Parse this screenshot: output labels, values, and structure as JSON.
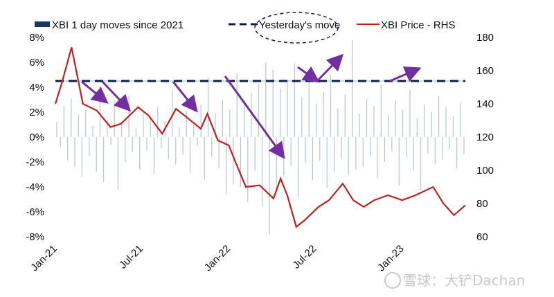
{
  "chart_data": {
    "type": "bar+line",
    "legend": [
      {
        "label": "XBI 1 day moves since 2021",
        "kind": "bar",
        "color": "#17375e"
      },
      {
        "label": "Yesterday's move",
        "kind": "dashed-line",
        "color": "#0d1b4d"
      },
      {
        "label": "XBI Price - RHS",
        "kind": "line",
        "color": "#c0201c"
      }
    ],
    "legend_placement": "top",
    "y_left": {
      "ticks": [
        "8%",
        "6%",
        "4%",
        "2%",
        "0%",
        "-2%",
        "-4%",
        "-6%",
        "-8%"
      ],
      "range": [
        -8,
        8
      ],
      "unit": "%"
    },
    "y_right": {
      "ticks": [
        "180",
        "160",
        "140",
        "120",
        "100",
        "80",
        "60"
      ],
      "range": [
        60,
        180
      ]
    },
    "x_ticks": [
      {
        "label": "Jan-21",
        "date": "2021-01-01"
      },
      {
        "label": "Jul-21",
        "date": "2021-07-01"
      },
      {
        "label": "Jan-22",
        "date": "2022-01-01"
      },
      {
        "label": "Jul-22",
        "date": "2022-07-01"
      },
      {
        "label": "Jan-23",
        "date": "2023-01-01"
      }
    ],
    "x_range": [
      "2021-01-01",
      "2023-05-14"
    ],
    "yesterday_move": 4.5,
    "daily_moves_color": "#b9c9d9",
    "daily_moves": [
      1.2,
      -0.8,
      2.5,
      -1.9,
      3.1,
      -2.4,
      1.8,
      -3.2,
      2.2,
      -1.5,
      0.9,
      -2.8,
      4.1,
      -3.6,
      1.4,
      -0.6,
      2.9,
      -4.2,
      1.1,
      -2.0,
      3.3,
      -1.2,
      0.7,
      -2.6,
      2.0,
      -1.1,
      1.6,
      -3.0,
      2.4,
      -0.9,
      1.3,
      -1.8,
      3.7,
      -2.2,
      0.8,
      -1.4,
      2.1,
      -2.9,
      1.0,
      -0.7,
      2.6,
      -3.4,
      4.8,
      -1.6,
      1.9,
      -2.5,
      3.0,
      -4.6,
      2.2,
      -3.8,
      5.1,
      -4.0,
      2.8,
      -5.2,
      3.5,
      -2.7,
      4.3,
      -5.6,
      6.0,
      -7.8,
      5.4,
      -4.4,
      3.9,
      -3.1,
      4.6,
      -2.3,
      5.9,
      -4.8,
      3.2,
      -2.1,
      4.4,
      -3.5,
      2.7,
      -1.9,
      3.6,
      -4.1,
      5.0,
      -2.8,
      2.3,
      -1.7,
      3.4,
      -3.0,
      7.8,
      -2.6,
      1.9,
      -2.4,
      3.1,
      -1.5,
      2.5,
      -3.3,
      4.2,
      -2.0,
      1.8,
      -1.2,
      2.9,
      -3.9,
      2.2,
      -1.6,
      3.8,
      -2.7,
      1.5,
      -4.3,
      2.6,
      -1.3,
      2.0,
      -2.2,
      3.3,
      -1.8,
      2.4,
      -1.0,
      1.7,
      -2.5,
      2.8,
      -1.4
    ],
    "price_rhs": [
      {
        "date": "2021-01-01",
        "value": 140
      },
      {
        "date": "2021-01-15",
        "value": 153
      },
      {
        "date": "2021-02-04",
        "value": 174
      },
      {
        "date": "2021-02-28",
        "value": 140
      },
      {
        "date": "2021-03-29",
        "value": 136
      },
      {
        "date": "2021-04-27",
        "value": 126
      },
      {
        "date": "2021-05-19",
        "value": 128
      },
      {
        "date": "2021-06-24",
        "value": 138
      },
      {
        "date": "2021-07-16",
        "value": 133
      },
      {
        "date": "2021-08-14",
        "value": 122
      },
      {
        "date": "2021-09-12",
        "value": 137
      },
      {
        "date": "2021-10-04",
        "value": 132
      },
      {
        "date": "2021-11-03",
        "value": 125
      },
      {
        "date": "2021-11-17",
        "value": 134
      },
      {
        "date": "2021-12-09",
        "value": 118
      },
      {
        "date": "2022-01-01",
        "value": 115
      },
      {
        "date": "2022-01-15",
        "value": 105
      },
      {
        "date": "2022-02-06",
        "value": 90
      },
      {
        "date": "2022-03-07",
        "value": 91
      },
      {
        "date": "2022-04-05",
        "value": 83
      },
      {
        "date": "2022-04-20",
        "value": 95
      },
      {
        "date": "2022-05-04",
        "value": 85
      },
      {
        "date": "2022-05-23",
        "value": 66
      },
      {
        "date": "2022-06-10",
        "value": 70
      },
      {
        "date": "2022-07-09",
        "value": 78
      },
      {
        "date": "2022-07-31",
        "value": 82
      },
      {
        "date": "2022-08-29",
        "value": 92
      },
      {
        "date": "2022-09-20",
        "value": 82
      },
      {
        "date": "2022-10-12",
        "value": 78
      },
      {
        "date": "2022-11-03",
        "value": 82
      },
      {
        "date": "2022-12-02",
        "value": 85
      },
      {
        "date": "2023-01-01",
        "value": 82
      },
      {
        "date": "2023-01-29",
        "value": 85
      },
      {
        "date": "2023-03-07",
        "value": 90
      },
      {
        "date": "2023-03-29",
        "value": 80
      },
      {
        "date": "2023-04-20",
        "value": 73
      },
      {
        "date": "2023-05-14",
        "value": 79
      }
    ],
    "annotation_color": "#7030a0",
    "grid": false
  },
  "watermark": "雪球：大铲Dachan"
}
